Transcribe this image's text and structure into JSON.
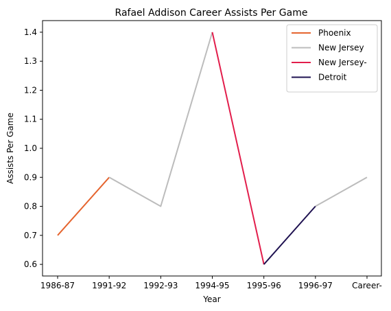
{
  "chart_data": {
    "type": "line",
    "title": "Rafael Addison Career Assists Per Game",
    "xlabel": "Year",
    "ylabel": "Assists Per Game",
    "categories": [
      "1986-87",
      "1991-92",
      "1992-93",
      "1994-95",
      "1995-96",
      "1996-97",
      "Career-"
    ],
    "ylim": [
      0.56,
      1.44
    ],
    "yticks": [
      0.6,
      0.7,
      0.8,
      0.9,
      1.0,
      1.1,
      1.2,
      1.3,
      1.4
    ],
    "grid": false,
    "legend_position": "top-right",
    "series": [
      {
        "name": "Phoenix",
        "color": "#e5642e",
        "points": [
          [
            0,
            0.7
          ],
          [
            1,
            0.9
          ]
        ]
      },
      {
        "name": "New Jersey",
        "color": "#bcbcbc",
        "points": [
          [
            1,
            0.9
          ],
          [
            2,
            0.8
          ],
          [
            3,
            1.4
          ]
        ]
      },
      {
        "name": "New Jersey",
        "color": "#bcbcbc",
        "points": [
          [
            5,
            0.8
          ],
          [
            6,
            0.9
          ]
        ],
        "in_legend": false
      },
      {
        "name": "New Jersey-",
        "color": "#e21d4b",
        "points": [
          [
            3,
            1.4
          ],
          [
            4,
            0.6
          ]
        ]
      },
      {
        "name": "Detroit",
        "color": "#1e1150",
        "points": [
          [
            4,
            0.6
          ],
          [
            5,
            0.8
          ]
        ]
      }
    ]
  }
}
